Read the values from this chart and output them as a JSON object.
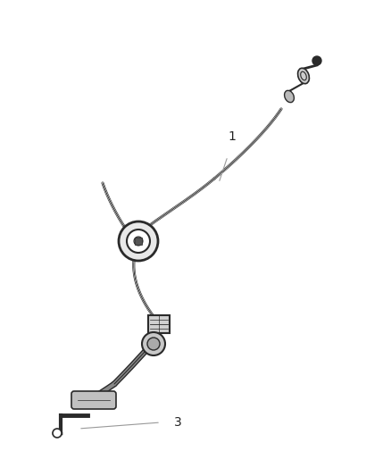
{
  "background_color": "#ffffff",
  "fig_width": 4.39,
  "fig_height": 5.33,
  "dpi": 100,
  "label_1": "1",
  "label_3": "3",
  "line_color": "#2a2a2a",
  "cable_color": "#3a3a3a",
  "annotation_color": "#999999",
  "grommet_fill": "#e0e0e0",
  "connector_fill": "#cccccc",
  "cable_lw": 1.3,
  "cable_outer_lw": 2.2
}
